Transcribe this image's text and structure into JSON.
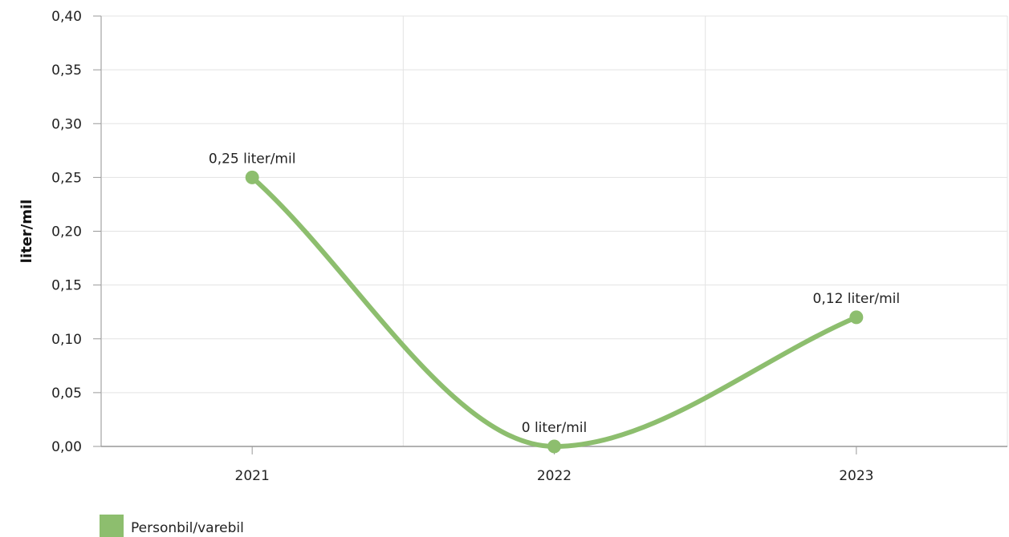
{
  "chart_data": {
    "type": "line",
    "categories": [
      "2021",
      "2022",
      "2023"
    ],
    "series": [
      {
        "name": "Personbil/varebil",
        "values": [
          0.25,
          0,
          0.12
        ],
        "data_labels": [
          "0,25 liter/mil",
          "0 liter/mil",
          "0,12 liter/mil"
        ],
        "color": "#8dbe6e"
      }
    ],
    "ylabel": "liter/mil",
    "xlabel": "",
    "ylim": [
      0,
      0.4
    ],
    "yticks": [
      "0,00",
      "0,05",
      "0,10",
      "0,15",
      "0,20",
      "0,25",
      "0,30",
      "0,35",
      "0,40"
    ],
    "smooth": true,
    "grid": true,
    "legend_position": "bottom-left"
  }
}
